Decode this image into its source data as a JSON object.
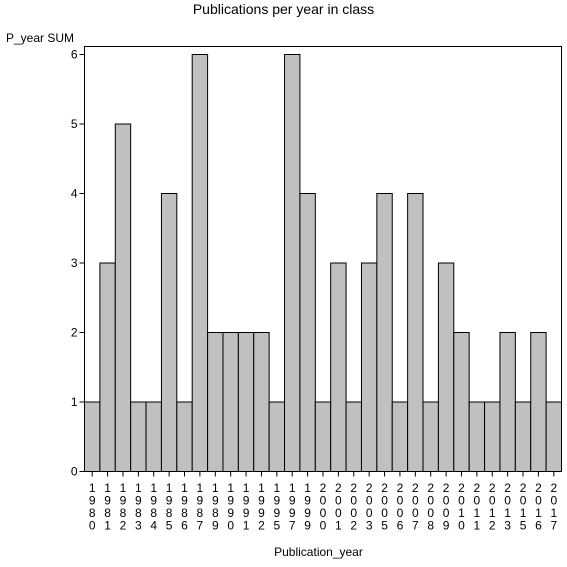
{
  "chart_data": {
    "type": "bar",
    "title": "Publications per year in class",
    "ylabel": "P_year SUM",
    "xlabel": "Publication_year",
    "categories": [
      "1980",
      "1981",
      "1982",
      "1983",
      "1984",
      "1985",
      "1986",
      "1987",
      "1989",
      "1990",
      "1991",
      "1992",
      "1995",
      "1997",
      "1999",
      "2000",
      "2001",
      "2002",
      "2003",
      "2005",
      "2006",
      "2007",
      "2008",
      "2009",
      "2010",
      "2011",
      "2012",
      "2013",
      "2015",
      "2016",
      "2017"
    ],
    "values": [
      1,
      3,
      5,
      1,
      1,
      4,
      1,
      6,
      2,
      2,
      2,
      2,
      1,
      6,
      4,
      1,
      3,
      1,
      3,
      4,
      1,
      4,
      1,
      3,
      2,
      1,
      1,
      2,
      1,
      2,
      1
    ],
    "yticks": [
      0,
      1,
      2,
      3,
      4,
      5,
      6
    ],
    "ylim": [
      0,
      6
    ],
    "grid": false,
    "bar_color": "#c0c0c0"
  }
}
